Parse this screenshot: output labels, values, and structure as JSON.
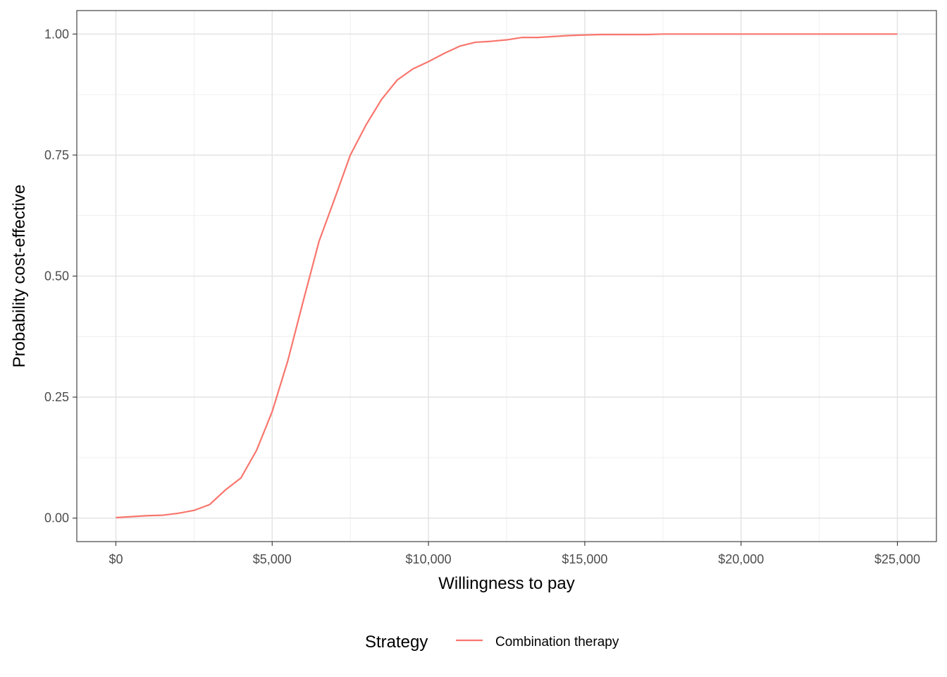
{
  "chart_data": {
    "type": "line",
    "xlabel": "Willingness to pay",
    "ylabel": "Probability cost-effective",
    "xlim": [
      -1250,
      26250
    ],
    "ylim": [
      -0.0485,
      1.0485
    ],
    "x_ticks": [
      0,
      5000,
      10000,
      15000,
      20000,
      25000
    ],
    "x_tick_labels": [
      "$0",
      "$5,000",
      "$10,000",
      "$15,000",
      "$20,000",
      "$25,000"
    ],
    "y_ticks": [
      0,
      0.25,
      0.5,
      0.75,
      1.0
    ],
    "y_tick_labels": [
      "0.00",
      "0.25",
      "0.50",
      "0.75",
      "1.00"
    ],
    "grid": true,
    "legend": {
      "title": "Strategy",
      "position": "bottom"
    },
    "series": [
      {
        "name": "Combination therapy",
        "color": "#F8766D",
        "x": [
          0,
          500,
          1000,
          1500,
          2000,
          2500,
          3000,
          3500,
          4000,
          4500,
          5000,
          5500,
          6000,
          6500,
          7000,
          7500,
          8000,
          8500,
          9000,
          9500,
          10000,
          10500,
          11000,
          11500,
          12000,
          12500,
          13000,
          13500,
          14000,
          14500,
          15000,
          15500,
          16000,
          16500,
          17000,
          17500,
          18000,
          18500,
          19000,
          19500,
          20000,
          20500,
          21000,
          21500,
          22000,
          22500,
          23000,
          23500,
          24000,
          24500,
          25000
        ],
        "y": [
          0.001,
          0.003,
          0.005,
          0.006,
          0.01,
          0.016,
          0.028,
          0.058,
          0.083,
          0.14,
          0.22,
          0.325,
          0.45,
          0.572,
          0.66,
          0.75,
          0.812,
          0.865,
          0.905,
          0.928,
          0.943,
          0.96,
          0.975,
          0.983,
          0.985,
          0.988,
          0.993,
          0.993,
          0.995,
          0.997,
          0.998,
          0.999,
          0.999,
          0.999,
          0.999,
          1.0,
          1.0,
          1.0,
          1.0,
          1.0,
          1.0,
          1.0,
          1.0,
          1.0,
          1.0,
          1.0,
          1.0,
          1.0,
          1.0,
          1.0,
          1.0
        ]
      }
    ]
  }
}
